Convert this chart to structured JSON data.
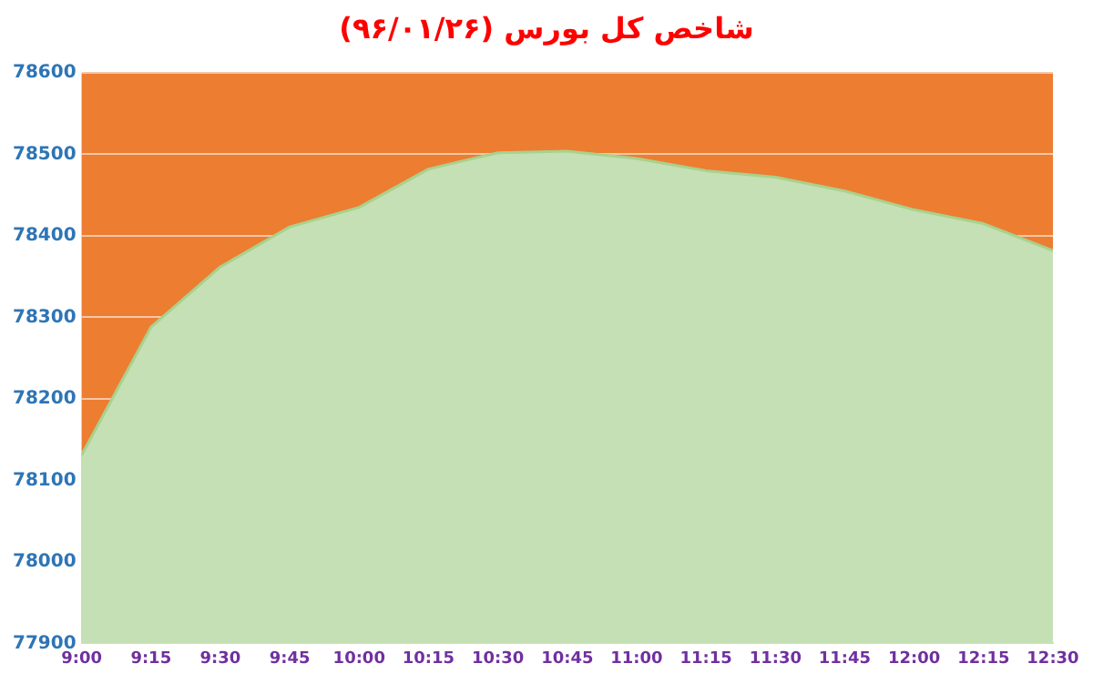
{
  "chart_data": {
    "type": "area",
    "title": "شاخص کل بورس (۹۶/۰۱/۲۶)",
    "x": [
      9,
      9.25,
      9.5,
      9.75,
      10,
      10.25,
      10.5,
      10.75,
      11,
      11.25,
      11.5,
      11.75,
      12,
      12.25,
      12.5
    ],
    "series": [
      {
        "color": "#c5e0b4",
        "values": [
          78131,
          78288,
          78362,
          78411,
          78435,
          78482,
          78502,
          78504,
          78495,
          78480,
          78472,
          78455,
          78432,
          78415,
          78382
        ]
      }
    ],
    "xlim": [
      9,
      12.5
    ],
    "xticks": [
      {
        "value": 9,
        "label": "9:00"
      },
      {
        "value": 9.25,
        "label": "9:15"
      },
      {
        "value": 9.5,
        "label": "9:30"
      },
      {
        "value": 9.75,
        "label": "9:45"
      },
      {
        "value": 10,
        "label": "10:00"
      },
      {
        "value": 10.25,
        "label": "10:15"
      },
      {
        "value": 10.5,
        "label": "10:30"
      },
      {
        "value": 10.75,
        "label": "10:45"
      },
      {
        "value": 11,
        "label": "11:00"
      },
      {
        "value": 11.25,
        "label": "11:15"
      },
      {
        "value": 11.5,
        "label": "11:30"
      },
      {
        "value": 11.75,
        "label": "11:45"
      },
      {
        "value": 12,
        "label": "12:00"
      },
      {
        "value": 12.25,
        "label": "12:15"
      },
      {
        "value": 12.5,
        "label": "12:30"
      }
    ],
    "ylim": [
      77900,
      78600
    ],
    "yticks": [
      77900,
      78000,
      78100,
      78200,
      78300,
      78400,
      78500,
      78600
    ],
    "bands": [
      {
        "axis": "y",
        "from": 77900,
        "to": 78600,
        "color": "#ed7d31"
      }
    ],
    "grid": "y",
    "legend": false,
    "marker": "none"
  }
}
